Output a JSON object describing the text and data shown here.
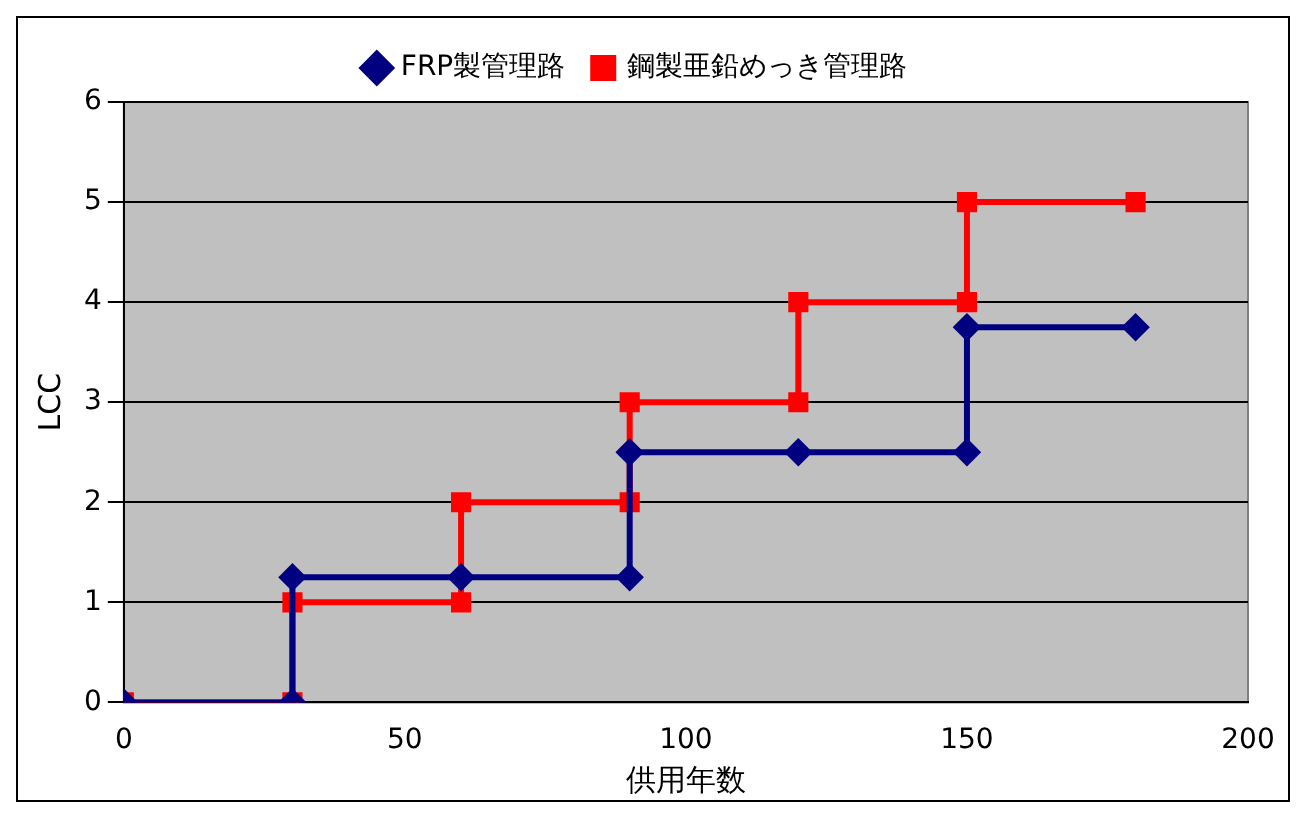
{
  "chart_data": {
    "type": "line",
    "xlabel": "供用年数",
    "ylabel": "LCC",
    "series": [
      {
        "name": "FRP製管理路",
        "color": "#000080",
        "marker": "diamond",
        "x": [
          0,
          30,
          30,
          60,
          90,
          90,
          120,
          150,
          150,
          180
        ],
        "values": [
          0,
          0,
          1.25,
          1.25,
          1.25,
          2.5,
          2.5,
          2.5,
          3.75,
          3.75
        ]
      },
      {
        "name": "鋼製亜鉛めっき管理路",
        "color": "#ff0000",
        "marker": "square",
        "x": [
          0,
          30,
          30,
          60,
          60,
          90,
          90,
          120,
          120,
          150,
          150,
          180
        ],
        "values": [
          0,
          0,
          1,
          1,
          2,
          2,
          3,
          3,
          4,
          4,
          5,
          5
        ]
      }
    ],
    "xlim": [
      0,
      200
    ],
    "xticks": [
      0,
      50,
      100,
      150,
      200
    ],
    "ylim": [
      0,
      6
    ],
    "yticks": [
      0,
      1,
      2,
      3,
      4,
      5,
      6
    ],
    "grid": "y",
    "legend": "top",
    "line_style": "solid"
  }
}
